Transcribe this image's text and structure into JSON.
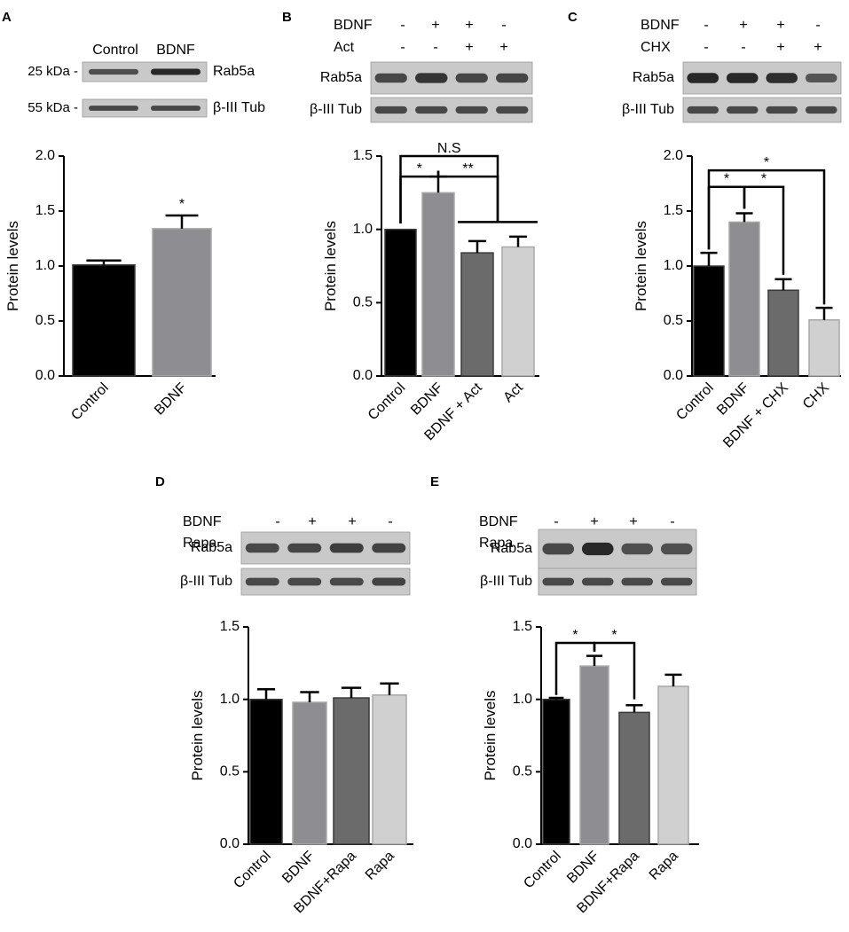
{
  "panels": [
    {
      "letter": "A",
      "blot": {
        "header_labels": [
          "Control",
          "BDNF"
        ],
        "rows": [
          {
            "label": "Rab5a",
            "kda": "25 kDa -",
            "intensity": [
              0.55,
              0.85
            ]
          },
          {
            "label": "β-III Tub",
            "kda": "55 kDa -",
            "intensity": [
              0.6,
              0.6
            ]
          }
        ]
      },
      "treatments": [],
      "chart_data": {
        "type": "bar",
        "categories": [
          "Control",
          "BDNF"
        ],
        "values": [
          1.01,
          1.34
        ],
        "errors": [
          0.04,
          0.12
        ],
        "colors": [
          "#000000",
          "#8e8e92"
        ],
        "ylabel": "Protein levels",
        "ylim": [
          0,
          2.0
        ],
        "yticks": [
          "0.0",
          "0.5",
          "1.0",
          "1.5",
          "2.0"
        ],
        "significance": [
          {
            "type": "star",
            "bar": 1,
            "text": "*"
          }
        ]
      }
    },
    {
      "letter": "B",
      "blot": {
        "header_labels": [],
        "rows": [
          {
            "label": "Rab5a",
            "kda": "",
            "intensity": [
              0.6,
              0.75,
              0.62,
              0.62
            ]
          },
          {
            "label": "β-III Tub",
            "kda": "",
            "intensity": [
              0.6,
              0.6,
              0.6,
              0.6
            ]
          }
        ]
      },
      "treatments": [
        {
          "label": "BDNF",
          "signs": [
            "-",
            "+",
            "+",
            "-"
          ]
        },
        {
          "label": "Act",
          "signs": [
            "-",
            "-",
            "+",
            "+"
          ]
        }
      ],
      "chart_data": {
        "type": "bar",
        "categories": [
          "Control",
          "BDNF",
          "BDNF + Act",
          "Act"
        ],
        "values": [
          1.0,
          1.25,
          0.84,
          0.88
        ],
        "errors": [
          0.0,
          0.11,
          0.08,
          0.07
        ],
        "colors": [
          "#000000",
          "#8e8e92",
          "#6b6b6b",
          "#d0d0d0"
        ],
        "ylabel": "Protein levels",
        "ylim": [
          0,
          1.5
        ],
        "yticks": [
          "0.0",
          "0.5",
          "1.0",
          "1.5"
        ],
        "significance": [
          {
            "type": "bracket",
            "from": 0,
            "to": 1,
            "level": 1.36,
            "text": "*"
          },
          {
            "type": "bracket",
            "from": 1,
            "to": 4,
            "level": 1.36,
            "text": "**"
          },
          {
            "type": "bracket",
            "from": 0,
            "to": 4,
            "level": 1.5,
            "text": "N.S"
          },
          {
            "type": "group",
            "from": 2,
            "to": 3,
            "level": 1.05,
            "stem_to": 1.36
          }
        ]
      }
    },
    {
      "letter": "C",
      "blot": {
        "header_labels": [],
        "rows": [
          {
            "label": "Rab5a",
            "kda": "",
            "intensity": [
              0.85,
              0.85,
              0.8,
              0.5
            ]
          },
          {
            "label": "β-III Tub",
            "kda": "",
            "intensity": [
              0.6,
              0.6,
              0.6,
              0.6
            ]
          }
        ]
      },
      "treatments": [
        {
          "label": "BDNF",
          "signs": [
            "-",
            "+",
            "+",
            "-"
          ]
        },
        {
          "label": "CHX",
          "signs": [
            "-",
            "-",
            "+",
            "+"
          ]
        }
      ],
      "chart_data": {
        "type": "bar",
        "categories": [
          "Control",
          "BDNF",
          "BDNF + CHX",
          "CHX"
        ],
        "values": [
          1.0,
          1.4,
          0.78,
          0.51
        ],
        "errors": [
          0.12,
          0.08,
          0.1,
          0.11
        ],
        "colors": [
          "#000000",
          "#8e8e92",
          "#6b6b6b",
          "#d0d0d0"
        ],
        "ylabel": "Protein levels",
        "ylim": [
          0,
          2.0
        ],
        "yticks": [
          "0.0",
          "0.5",
          "1.0",
          "1.5",
          "2.0"
        ],
        "significance": [
          {
            "type": "bracket",
            "from": 0,
            "to": 1,
            "level": 1.72,
            "text": "*",
            "drop": [
              1.15,
              1.52
            ]
          },
          {
            "type": "bracket",
            "from": 1,
            "to": 2,
            "level": 1.72,
            "text": "*",
            "drop": [
              1.52,
              0.92
            ]
          },
          {
            "type": "bracket",
            "from": 0,
            "to": 3,
            "level": 1.87,
            "text": "*",
            "drop": [
              1.15,
              0.65
            ]
          }
        ]
      }
    },
    {
      "letter": "D",
      "blot": {
        "header_labels": [],
        "rows": [
          {
            "label": "Rab5a",
            "kda": "",
            "intensity": [
              0.6,
              0.62,
              0.68,
              0.65
            ]
          },
          {
            "label": "β-III Tub",
            "kda": "",
            "intensity": [
              0.6,
              0.6,
              0.6,
              0.65
            ]
          }
        ]
      },
      "treatments": [
        {
          "label": "BDNF",
          "signs": [
            "-",
            "+",
            "+",
            "-"
          ]
        },
        {
          "label": "Rapa",
          "signs": [
            "-",
            "-",
            "+",
            "+"
          ]
        }
      ],
      "chart_data": {
        "type": "bar",
        "categories": [
          "Control",
          "BDNF",
          "BDNF+Rapa",
          "Rapa"
        ],
        "values": [
          1.0,
          0.98,
          1.01,
          1.03
        ],
        "errors": [
          0.07,
          0.07,
          0.07,
          0.08
        ],
        "colors": [
          "#000000",
          "#8e8e92",
          "#6b6b6b",
          "#d0d0d0"
        ],
        "ylabel": "Protein levels",
        "ylim": [
          0,
          1.5
        ],
        "yticks": [
          "0.0",
          "0.5",
          "1.0",
          "1.5"
        ],
        "significance": []
      }
    },
    {
      "letter": "E",
      "blot": {
        "header_labels": [],
        "rows": [
          {
            "label": "Rab5a",
            "kda": "",
            "intensity": [
              0.6,
              0.85,
              0.55,
              0.55
            ]
          },
          {
            "label": "β-III Tub",
            "kda": "",
            "intensity": [
              0.6,
              0.6,
              0.6,
              0.6
            ]
          }
        ]
      },
      "treatments": [
        {
          "label": "BDNF",
          "signs": [
            "-",
            "+",
            "+",
            "-"
          ]
        },
        {
          "label": "Rapa",
          "signs": [
            "-",
            "-",
            "+",
            "+"
          ]
        }
      ],
      "chart_data": {
        "type": "bar",
        "categories": [
          "Control",
          "BDNF",
          "BDNF+Rapa",
          "Rapa"
        ],
        "values": [
          1.0,
          1.23,
          0.91,
          1.09
        ],
        "errors": [
          0.01,
          0.07,
          0.05,
          0.08
        ],
        "colors": [
          "#000000",
          "#8e8e92",
          "#6b6b6b",
          "#d0d0d0"
        ],
        "ylabel": "Protein levels",
        "ylim": [
          0,
          1.5
        ],
        "yticks": [
          "0.0",
          "0.5",
          "1.0",
          "1.5"
        ],
        "significance": [
          {
            "type": "bracket",
            "from": 0,
            "to": 1,
            "level": 1.39,
            "text": "*",
            "drop": [
              1.03,
              1.33
            ]
          },
          {
            "type": "bracket",
            "from": 1,
            "to": 2,
            "level": 1.39,
            "text": "*",
            "drop": [
              1.33,
              1.0
            ]
          }
        ]
      }
    }
  ]
}
